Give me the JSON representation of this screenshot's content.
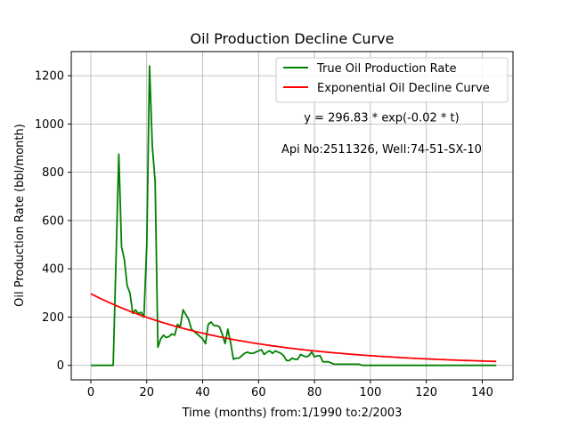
{
  "chart_data": {
    "type": "line",
    "title": "Oil Production Decline Curve",
    "xlabel": "Time (months) from:1/1990 to:2/2003",
    "ylabel": "Oil Production Rate (bbl/month)",
    "xlim": [
      -7,
      151
    ],
    "ylim": [
      -60,
      1300
    ],
    "xticks": [
      0,
      20,
      40,
      60,
      80,
      100,
      120,
      140
    ],
    "yticks": [
      0,
      200,
      400,
      600,
      800,
      1000,
      1200
    ],
    "grid": true,
    "legend_position": "top-right",
    "annotations": [
      {
        "text": "y = 296.83 * exp(-0.02 * t)",
        "x": 104,
        "y": 1010
      },
      {
        "text": "Api No:2511326, Well:74-51-SX-10",
        "x": 104,
        "y": 880
      }
    ],
    "series": [
      {
        "name": "True Oil Production Rate",
        "color": "#008000",
        "x": [
          0,
          1,
          2,
          3,
          4,
          5,
          6,
          7,
          8,
          9,
          10,
          11,
          12,
          13,
          14,
          15,
          16,
          17,
          18,
          19,
          20,
          21,
          22,
          23,
          24,
          25,
          26,
          27,
          28,
          29,
          30,
          31,
          32,
          33,
          34,
          35,
          36,
          37,
          38,
          39,
          40,
          41,
          42,
          43,
          44,
          45,
          46,
          47,
          48,
          49,
          50,
          51,
          52,
          53,
          54,
          55,
          56,
          57,
          58,
          59,
          60,
          61,
          62,
          63,
          64,
          65,
          66,
          67,
          68,
          69,
          70,
          71,
          72,
          73,
          74,
          75,
          76,
          77,
          78,
          79,
          80,
          81,
          82,
          83,
          84,
          85,
          86,
          87,
          88,
          89,
          90,
          91,
          92,
          93,
          94,
          95,
          96,
          97,
          98,
          99,
          100,
          105,
          110,
          115,
          120,
          125,
          130,
          135,
          140,
          145
        ],
        "y": [
          0,
          0,
          0,
          0,
          0,
          0,
          0,
          0,
          0,
          430,
          875,
          490,
          440,
          330,
          300,
          215,
          230,
          215,
          220,
          200,
          500,
          1240,
          910,
          760,
          75,
          110,
          125,
          115,
          120,
          130,
          125,
          170,
          160,
          230,
          210,
          190,
          150,
          140,
          130,
          120,
          110,
          90,
          170,
          180,
          165,
          165,
          160,
          130,
          90,
          150,
          95,
          25,
          30,
          30,
          40,
          50,
          55,
          50,
          50,
          55,
          60,
          65,
          45,
          55,
          60,
          50,
          60,
          55,
          50,
          40,
          20,
          20,
          30,
          25,
          25,
          45,
          40,
          35,
          40,
          55,
          35,
          40,
          40,
          15,
          15,
          15,
          10,
          5,
          5,
          5,
          5,
          5,
          5,
          5,
          5,
          5,
          5,
          0,
          0,
          0,
          0,
          0,
          0,
          0,
          0,
          0,
          0,
          0,
          0,
          0
        ]
      },
      {
        "name": "Exponential Oil Decline Curve",
        "color": "#ff0000",
        "model": {
          "a": 296.83,
          "b": 0.02
        },
        "x_range": [
          0,
          145
        ]
      }
    ]
  }
}
